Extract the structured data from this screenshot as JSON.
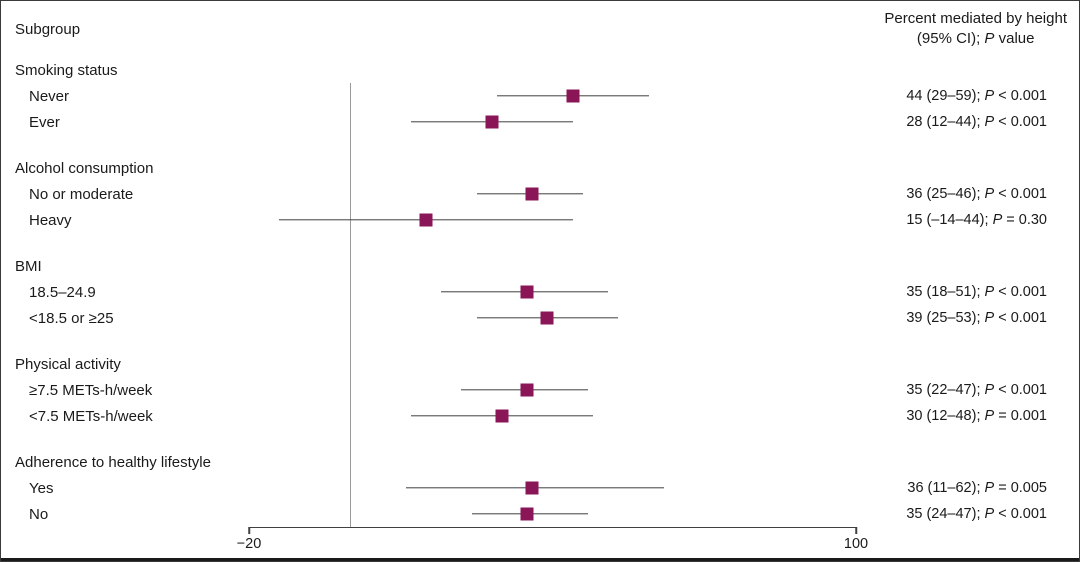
{
  "figure": {
    "header_left": "Subgroup",
    "header_right_line1": "Percent mediated by height",
    "header_right_line2_prefix": "(95% CI); ",
    "header_right_p": "P",
    "header_right_suffix": " value"
  },
  "chart_data": {
    "type": "forest",
    "title": "Percent mediated by height (95% CI); P value",
    "xlabel": "Percent mediated by height",
    "axis": {
      "min": -20,
      "max": 100,
      "ticks": [
        "−20",
        "100"
      ],
      "tick_values": [
        -20,
        100
      ],
      "reference_line_x": 0,
      "grid": false
    },
    "marker_color": "#8a1557",
    "ci_line_color": "#404040",
    "groups": [
      {
        "label": "Smoking status",
        "rows": [
          {
            "label": "Never",
            "estimate": 44,
            "ci_low": 29,
            "ci_high": 59,
            "value_text": "44 (29–59); ",
            "p_label": "P",
            "p_text": " < 0.001"
          },
          {
            "label": "Ever",
            "estimate": 28,
            "ci_low": 12,
            "ci_high": 44,
            "value_text": "28 (12–44); ",
            "p_label": "P",
            "p_text": " < 0.001"
          }
        ]
      },
      {
        "label": "Alcohol consumption",
        "rows": [
          {
            "label": "No or moderate",
            "estimate": 36,
            "ci_low": 25,
            "ci_high": 46,
            "value_text": "36 (25–46); ",
            "p_label": "P",
            "p_text": " < 0.001"
          },
          {
            "label": "Heavy",
            "estimate": 15,
            "ci_low": -14,
            "ci_high": 44,
            "value_text": "15 (–14–44); ",
            "p_label": "P",
            "p_text": " = 0.30"
          }
        ]
      },
      {
        "label": "BMI",
        "rows": [
          {
            "label": "18.5–24.9",
            "estimate": 35,
            "ci_low": 18,
            "ci_high": 51,
            "value_text": "35 (18–51); ",
            "p_label": "P",
            "p_text": " < 0.001"
          },
          {
            "label": "<18.5 or ≥25",
            "estimate": 39,
            "ci_low": 25,
            "ci_high": 53,
            "value_text": "39 (25–53); ",
            "p_label": "P",
            "p_text": " < 0.001"
          }
        ]
      },
      {
        "label": "Physical activity",
        "rows": [
          {
            "label": "≥7.5 METs-h/week",
            "estimate": 35,
            "ci_low": 22,
            "ci_high": 47,
            "value_text": "35 (22–47); ",
            "p_label": "P",
            "p_text": " < 0.001"
          },
          {
            "label": "<7.5 METs-h/week",
            "estimate": 30,
            "ci_low": 12,
            "ci_high": 48,
            "value_text": "30 (12–48); ",
            "p_label": "P",
            "p_text": " = 0.001"
          }
        ]
      },
      {
        "label": "Adherence to healthy lifestyle",
        "rows": [
          {
            "label": "Yes",
            "estimate": 36,
            "ci_low": 11,
            "ci_high": 62,
            "value_text": "36 (11–62); ",
            "p_label": "P",
            "p_text": " = 0.005"
          },
          {
            "label": "No",
            "estimate": 35,
            "ci_low": 24,
            "ci_high": 47,
            "value_text": "35 (24–47); ",
            "p_label": "P",
            "p_text": " < 0.001"
          }
        ]
      }
    ]
  }
}
